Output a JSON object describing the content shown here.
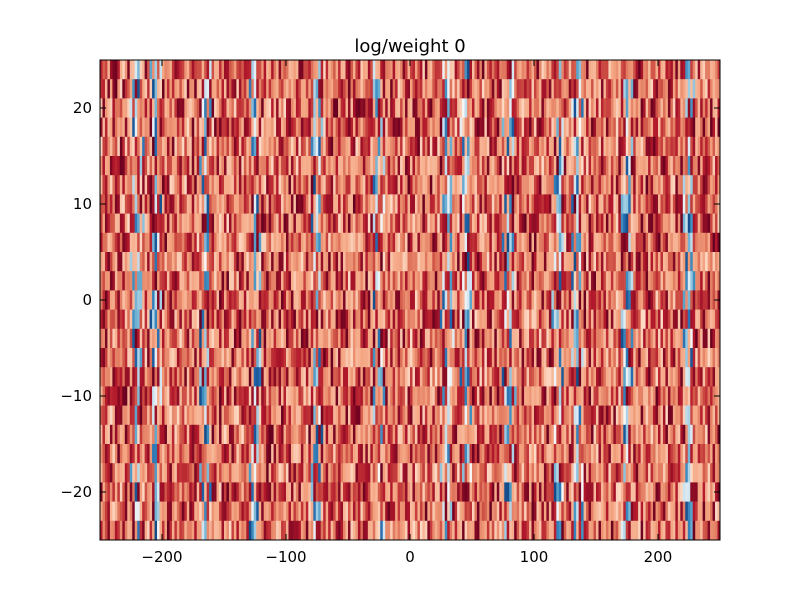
{
  "chart_data": {
    "type": "heatmap",
    "title": "log/weight 0",
    "xlabel": "",
    "ylabel": "",
    "xlim": [
      -250,
      250
    ],
    "ylim": [
      -25,
      25
    ],
    "x_ticks": [
      -200,
      -100,
      0,
      100,
      200
    ],
    "x_tick_labels": [
      "−200",
      "−100",
      "0",
      "100",
      "200"
    ],
    "y_ticks": [
      -20,
      -10,
      0,
      10,
      20
    ],
    "y_tick_labels": [
      "−20",
      "−10",
      "0",
      "10",
      "20"
    ],
    "grid": false,
    "legend": "none",
    "colormap": "RdBu",
    "colormap_stops": [
      "#67001f",
      "#b2182b",
      "#d6604d",
      "#f4a582",
      "#fddbc7",
      "#f7f7f7",
      "#d1e5f0",
      "#92c5de",
      "#4393c3",
      "#2166ac",
      "#053061"
    ],
    "grid_shape": {
      "columns": 250,
      "rows": 25
    },
    "value_range": [
      0,
      1
    ],
    "note_values": "dense per-cell values not individually legible; rendered as a pattern dominated by red/salmon tones with sparse blue/white vertical streaks at roughly x = -220, -160, -120, -75, -25, 30, 80, 120, 175, 225"
  }
}
